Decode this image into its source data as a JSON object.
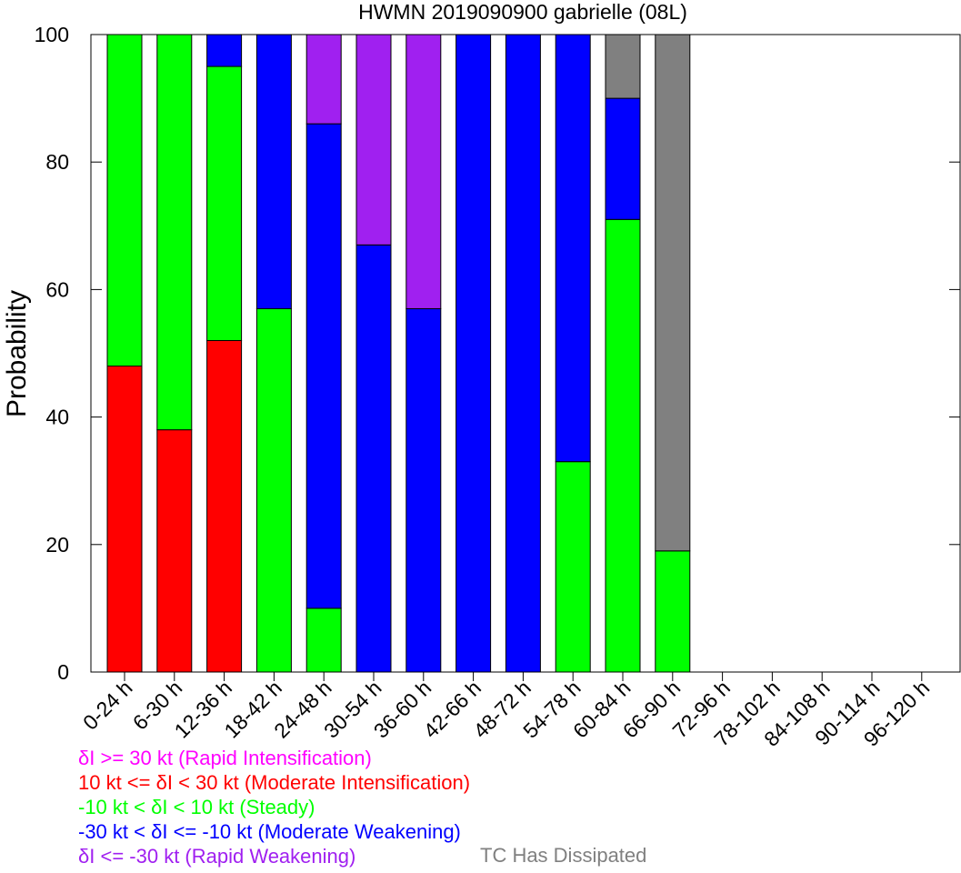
{
  "chart_data": {
    "type": "bar",
    "stacked": true,
    "title": "HWMN 2019090900 gabrielle (08L)",
    "ylabel": "Probability",
    "ylim": [
      0,
      100
    ],
    "yticks": [
      "0",
      "20",
      "40",
      "60",
      "80",
      "100"
    ],
    "categories": [
      "0-24 h",
      "6-30 h",
      "12-36 h",
      "18-42 h",
      "24-48 h",
      "30-54 h",
      "36-60 h",
      "42-66 h",
      "48-72 h",
      "54-78 h",
      "60-84 h",
      "66-90 h",
      "72-96 h",
      "78-102 h",
      "84-108 h",
      "90-114 h",
      "96-120 h"
    ],
    "series": [
      {
        "name": "δI >= 30 kt (Rapid Intensification)",
        "color": "#ff00ff",
        "values": [
          0,
          0,
          0,
          0,
          0,
          0,
          0,
          0,
          0,
          0,
          0,
          0,
          0,
          0,
          0,
          0,
          0
        ]
      },
      {
        "name": "10 kt <= δI < 30 kt (Moderate Intensification)",
        "color": "#ff0000",
        "values": [
          48,
          38,
          52,
          0,
          0,
          0,
          0,
          0,
          0,
          0,
          0,
          0,
          0,
          0,
          0,
          0,
          0
        ]
      },
      {
        "name": "-10 kt < δI < 10 kt (Steady)",
        "color": "#00ff00",
        "values": [
          52,
          62,
          43,
          57,
          10,
          0,
          0,
          0,
          0,
          33,
          71,
          19,
          0,
          0,
          0,
          0,
          0
        ]
      },
      {
        "name": "-30 kt < δI <= -10 kt (Moderate Weakening)",
        "color": "#0000ff",
        "values": [
          0,
          0,
          5,
          43,
          76,
          67,
          57,
          100,
          100,
          67,
          19,
          0,
          0,
          0,
          0,
          0,
          0
        ]
      },
      {
        "name": "δI <= -30 kt (Rapid Weakening)",
        "color": "#a020f0",
        "values": [
          0,
          0,
          0,
          0,
          14,
          33,
          43,
          0,
          0,
          0,
          0,
          0,
          0,
          0,
          0,
          0,
          0
        ]
      },
      {
        "name": "TC Has Dissipated",
        "color": "#808080",
        "values": [
          0,
          0,
          0,
          0,
          0,
          0,
          0,
          0,
          0,
          0,
          10,
          81,
          0,
          0,
          0,
          0,
          0
        ]
      }
    ],
    "legend_placement": "bottom-left",
    "grid": false
  },
  "legend": {
    "ri": {
      "text": "δI >= 30 kt (Rapid Intensification)",
      "color": "#ff00ff"
    },
    "mi": {
      "text": "10 kt <= δI < 30 kt (Moderate Intensification)",
      "color": "#ff0000"
    },
    "steady": {
      "text": "-10 kt < δI < 10 kt (Steady)",
      "color": "#00ff00"
    },
    "mw": {
      "text": "-30 kt < δI <= -10 kt (Moderate Weakening)",
      "color": "#0000ff"
    },
    "rw": {
      "text": "δI <= -30 kt (Rapid Weakening)",
      "color": "#a020f0"
    },
    "dissipated": {
      "text": "TC Has Dissipated",
      "color": "#808080"
    }
  }
}
